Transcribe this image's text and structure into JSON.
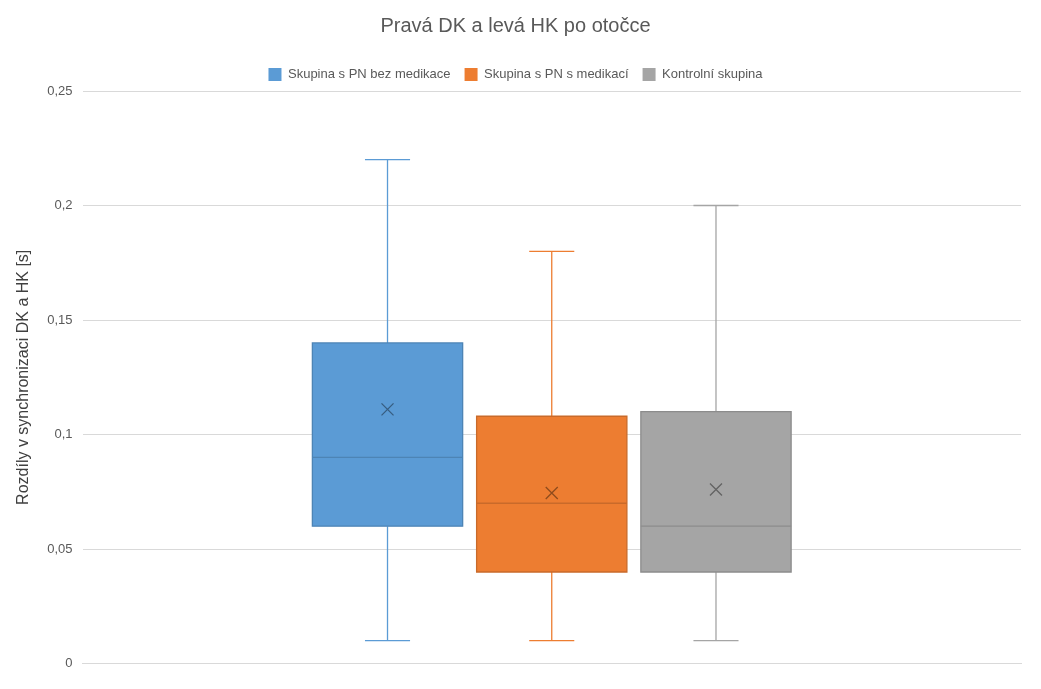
{
  "chart_data": {
    "type": "box",
    "title": "Pravá DK a levá HK po otočce",
    "ylabel": "Rozdíly v synchronizaci DK a HK [s]",
    "categories": [
      null
    ],
    "ylim": [
      0,
      0.25
    ],
    "yticks": [
      0,
      {
        "value": 0.05,
        "label": "0,05"
      },
      {
        "value": 0.1,
        "label": "0,1"
      },
      {
        "value": 0.15,
        "label": "0,15"
      },
      {
        "value": 0.2,
        "label": "0,2"
      },
      {
        "value": 0.25,
        "label": "0,25"
      }
    ],
    "grid": "y",
    "legend": "top",
    "series": [
      {
        "name": "Skupina s PN bez medikace",
        "color": "#5b9bd5",
        "boxes": [
          {
            "low": 0.01,
            "q1": 0.06,
            "median": 0.09,
            "q3": 0.14,
            "high": 0.22,
            "mean": 0.111
          }
        ]
      },
      {
        "name": "Skupina s PN s medikací",
        "color": "#ed7d31",
        "boxes": [
          {
            "low": 0.01,
            "q1": 0.04,
            "median": 0.07,
            "q3": 0.108,
            "high": 0.18,
            "mean": 0.0745
          }
        ]
      },
      {
        "name": "Kontrolní skupina",
        "color": "#a5a5a5",
        "boxes": [
          {
            "low": 0.01,
            "q1": 0.04,
            "median": 0.06,
            "q3": 0.11,
            "high": 0.2,
            "mean": 0.076
          }
        ]
      }
    ]
  }
}
